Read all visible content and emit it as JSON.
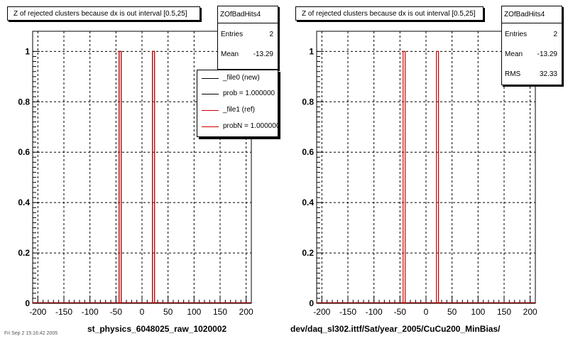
{
  "colors": {
    "background": "#ffffff",
    "axis": "#000000",
    "grid": "#000000",
    "new_hist": "#000000",
    "ref_hist": "#cc0000"
  },
  "footer": {
    "text": "Fri Sep 2 15:16:42 2005"
  },
  "chart_data": [
    {
      "type": "bar",
      "title": "Z of rejected clusters  because dx is out interval  [0.5,25]",
      "xlabel": "st_physics_6048025_raw_1020002",
      "ylabel": "",
      "xlim": [
        -210,
        210
      ],
      "ylim": [
        0,
        1.08
      ],
      "grid": true,
      "x_ticks": [
        "-200",
        "-150",
        "-100",
        "-50",
        "0",
        "50",
        "100",
        "150",
        "200"
      ],
      "y_ticks": [
        "0",
        "0.2",
        "0.4",
        "0.6",
        "0.8",
        "1"
      ],
      "stats": {
        "name": "ZOfBadHits4",
        "rows": [
          {
            "label": "Entries",
            "value": "2"
          },
          {
            "label": "Mean",
            "value": "-13.29"
          }
        ]
      },
      "legend": {
        "placement": "top-right",
        "entries": [
          {
            "label": "_file0 (new)",
            "color": "#000000"
          },
          {
            "label": "prob = 1.000000",
            "color": "#000000"
          },
          {
            "label": "_file1 (ref)",
            "color": "#cc0000"
          },
          {
            "label": "probN = 1.000000",
            "color": "#cc0000"
          }
        ]
      },
      "series": [
        {
          "name": "_file0 (new)",
          "color": "#000000",
          "bins": [
            {
              "x0": -44,
              "x1": -40,
              "value": 1
            },
            {
              "x0": 20,
              "x1": 24,
              "value": 1
            }
          ]
        },
        {
          "name": "_file1 (ref)",
          "color": "#cc0000",
          "bins": [
            {
              "x0": -44,
              "x1": -40,
              "value": 1
            },
            {
              "x0": 20,
              "x1": 24,
              "value": 1
            }
          ]
        }
      ]
    },
    {
      "type": "bar",
      "title": "Z of rejected clusters  because dx is out interval  [0.5,25]",
      "xlabel": "dev/daq_sl302.ittf/Sat/year_2005/CuCu200_MinBias/",
      "ylabel": "",
      "xlim": [
        -210,
        210
      ],
      "ylim": [
        0,
        1.08
      ],
      "grid": true,
      "x_ticks": [
        "-200",
        "-150",
        "-100",
        "-50",
        "0",
        "50",
        "100",
        "150",
        "200"
      ],
      "y_ticks": [
        "0",
        "0.2",
        "0.4",
        "0.6",
        "0.8",
        "1"
      ],
      "stats": {
        "name": "ZOfBadHits4",
        "rows": [
          {
            "label": "Entries",
            "value": "2"
          },
          {
            "label": "Mean",
            "value": "-13.29"
          },
          {
            "label": "RMS",
            "value": "32.33"
          }
        ]
      },
      "series": [
        {
          "name": "",
          "color": "#cc0000",
          "bins": [
            {
              "x0": -44,
              "x1": -40,
              "value": 1
            },
            {
              "x0": 20,
              "x1": 24,
              "value": 1
            }
          ]
        }
      ]
    }
  ]
}
